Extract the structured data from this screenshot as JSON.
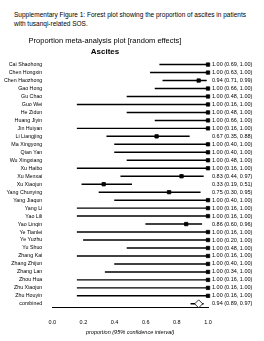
{
  "caption": "Supplementary Figure 1: Forest plot showing the proportion of ascites in patients with tusanqi-related SOS.",
  "chart_data": {
    "type": "forest",
    "title": "Proportion meta-analysis plot [random effects]",
    "subtitle": "Ascites",
    "x_label": "proportion (95% confidence interval)",
    "orientation": "horizontal",
    "categories": [
      "Cai Shaohong",
      "Chen Hongxin",
      "Chen Haozhong",
      "Gao Hong",
      "Gu Chao",
      "Guo Wei",
      "He Zidun",
      "Huang Jiyin",
      "Jin Huiyan",
      "Li Liangjing",
      "Ma Xingyong",
      "Qian Yan",
      "Wu Xingxiang",
      "Xu Haibo",
      "Xu Menxai",
      "Xu Xiaojun",
      "Yang Chunying",
      "Yang Jiaqun",
      "Yang Li",
      "Yao Lili",
      "Yao Linqin",
      "Ye Tianlei",
      "Ye Yuzhu",
      "Yu Shuo",
      "Zhang Kai",
      "Zhang Zhijun",
      "Zhang Lan",
      "Zhou Hua",
      "Zhu Xiaojun",
      "Zhu Houyin",
      "combined"
    ],
    "values": [
      1,
      1,
      0.94,
      1,
      1,
      1,
      1,
      1,
      1,
      0.67,
      1,
      1,
      1,
      1,
      0.83,
      0.33,
      0.75,
      1,
      1,
      1,
      0.86,
      1,
      1,
      1,
      1,
      1,
      1,
      1,
      1,
      1,
      0.94
    ],
    "lower": [
      0.69,
      0.63,
      0.71,
      0.66,
      0.48,
      0.16,
      0.48,
      0.66,
      0.16,
      0.35,
      0.4,
      0.4,
      0.48,
      0.16,
      0.44,
      0.19,
      0.3,
      0.4,
      0.16,
      0.16,
      0.6,
      0.16,
      0.2,
      0.48,
      0.16,
      0.4,
      0.34,
      0.16,
      0.16,
      0.16,
      0.89
    ],
    "upper": [
      1,
      1,
      0.99,
      1,
      1,
      1,
      1,
      1,
      1,
      0.88,
      1,
      1,
      1,
      1,
      0.97,
      0.51,
      0.95,
      1,
      1,
      1,
      0.96,
      1,
      1,
      1,
      1,
      1,
      1,
      1,
      1,
      1,
      0.97
    ],
    "value_labels": [
      "1.00 (0.69, 1.00)",
      "1.00 (0.63, 1.00)",
      "0.94 (0.71, 0.99)",
      "1.00 (0.66, 1.00)",
      "1.00 (0.48, 1.00)",
      "1.00 (0.16, 1.00)",
      "1.00 (0.48, 1.00)",
      "1.00 (0.66, 1.00)",
      "1.00 (0.16, 1.00)",
      "0.67 (0.35, 0.88)",
      "1.00 (0.40, 1.00)",
      "1.00 (0.40, 1.00)",
      "1.00 (0.48, 1.00)",
      "1.00 (0.16, 1.00)",
      "0.83 (0.44, 0.97)",
      "0.33 (0.19, 0.51)",
      "0.75 (0.30, 0.95)",
      "1.00 (0.40, 1.00)",
      "1.00 (0.16, 1.00)",
      "1.00 (0.16, 1.00)",
      "0.86 (0.60, 0.96)",
      "1.00 (0.16, 1.00)",
      "1.00 (0.20, 1.00)",
      "1.00 (0.48, 1.00)",
      "1.00 (0.16, 1.00)",
      "1.00 (0.40, 1.00)",
      "1.00 (0.34, 1.00)",
      "1.00 (0.16, 1.00)",
      "1.00 (0.16, 1.00)",
      "1.00 (0.16, 1.00)",
      "0.94 (0.89, 0.97)"
    ],
    "data_labels": true,
    "xlim": [
      0,
      1
    ],
    "xticks": [
      {
        "value": 0,
        "label": "0.0"
      },
      {
        "value": 0.2,
        "label": "0.2"
      },
      {
        "value": 0.4,
        "label": "0.4"
      },
      {
        "value": 0.6,
        "label": "0.6"
      },
      {
        "value": 0.8,
        "label": "0.8"
      },
      {
        "value": 1,
        "label": "1.0"
      }
    ],
    "grid": false,
    "color": "#000000",
    "marker": "square"
  }
}
